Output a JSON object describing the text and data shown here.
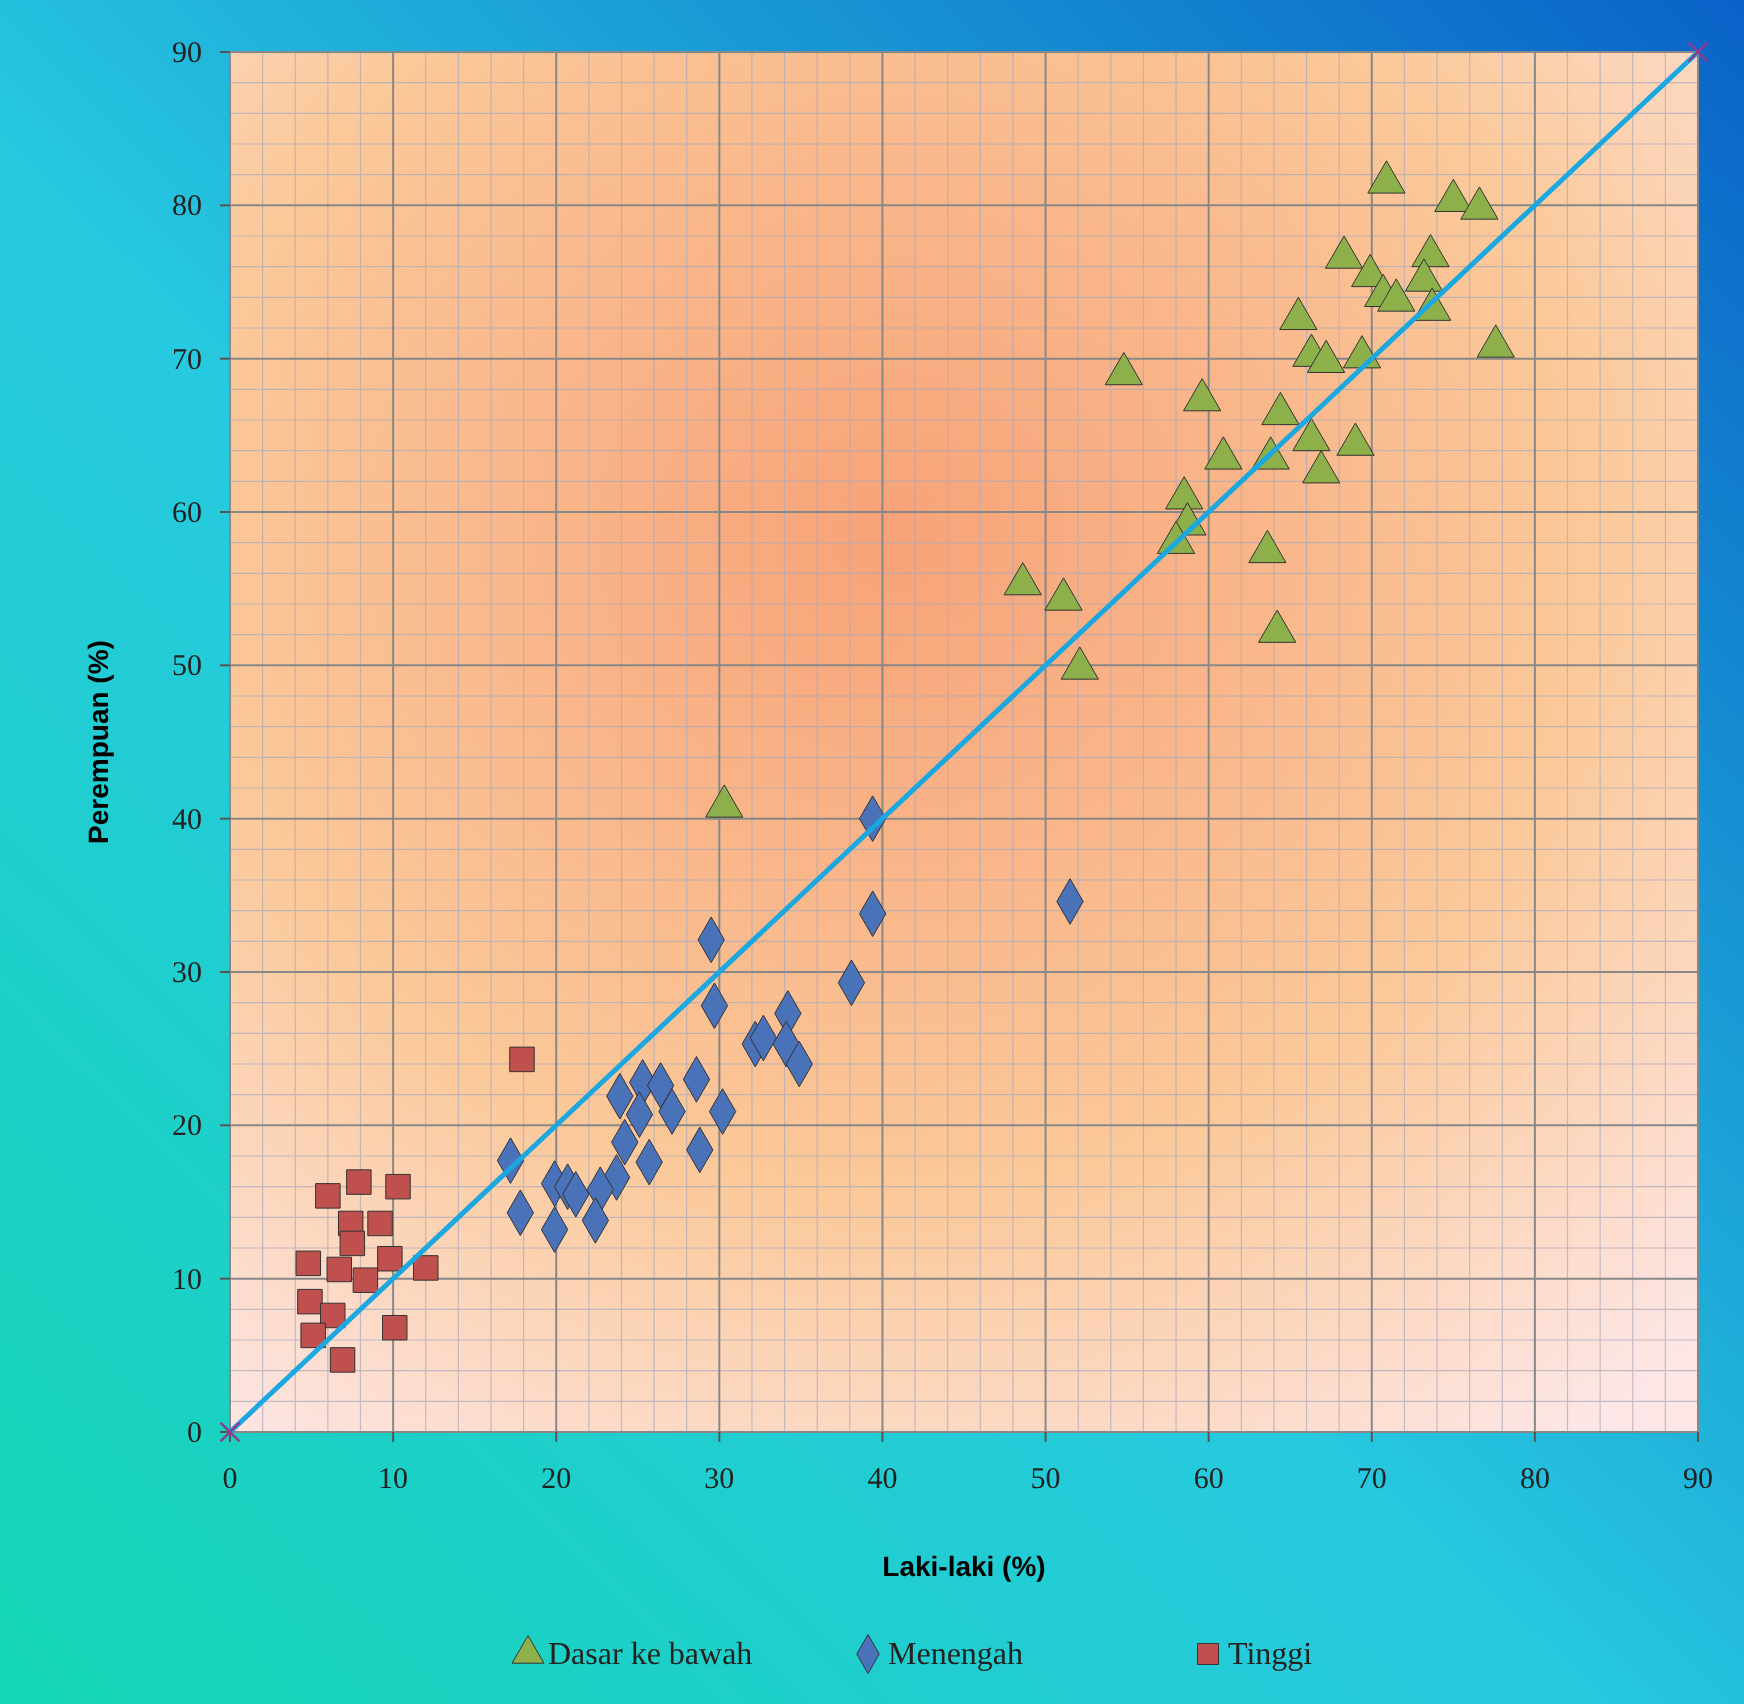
{
  "chart_data": {
    "type": "scatter",
    "xlabel": "Laki-laki (%)",
    "ylabel": "Perempuan (%)",
    "xlim": [
      0,
      90
    ],
    "ylim": [
      0,
      90
    ],
    "xticks": [
      0,
      10,
      20,
      30,
      40,
      50,
      60,
      70,
      80,
      90
    ],
    "yticks": [
      0,
      10,
      20,
      30,
      40,
      50,
      60,
      70,
      80,
      90
    ],
    "grid": true,
    "legend": "bottom",
    "series": [
      {
        "name": "Dasar ke bawah",
        "color": "#8db04a",
        "marker": "triangle",
        "x": [
          70.9,
          75.0,
          76.6,
          68.3,
          73.6,
          69.9,
          73.2,
          70.7,
          71.5,
          73.7,
          65.5,
          66.3,
          67.2,
          69.4,
          77.6,
          54.8,
          59.6,
          64.4,
          60.9,
          63.8,
          66.3,
          66.9,
          69.0,
          58.5,
          58.7,
          58.0,
          63.6,
          64.2,
          48.6,
          51.1,
          52.1,
          30.3
        ],
        "values": [
          81.5,
          80.3,
          79.8,
          76.6,
          76.7,
          75.4,
          75.1,
          74.1,
          73.8,
          73.2,
          72.6,
          70.2,
          69.8,
          70.1,
          70.8,
          69.0,
          67.3,
          66.4,
          63.5,
          63.5,
          64.7,
          62.6,
          64.4,
          60.9,
          59.2,
          58.0,
          57.4,
          52.2,
          55.3,
          54.3,
          49.8,
          40.8
        ]
      },
      {
        "name": "Menengah",
        "color": "#4a72b8",
        "marker": "diamond",
        "x": [
          39.4,
          39.4,
          51.5,
          29.5,
          38.1,
          29.7,
          34.2,
          32.2,
          32.7,
          34.1,
          34.9,
          25.3,
          26.4,
          28.6,
          23.9,
          25.1,
          27.1,
          30.2,
          24.2,
          25.7,
          28.8,
          17.2,
          23.7,
          22.7,
          19.9,
          20.7,
          21.2,
          17.8,
          22.4,
          19.9
        ],
        "values": [
          40.0,
          33.8,
          34.6,
          32.1,
          29.3,
          27.8,
          27.3,
          25.3,
          25.7,
          25.3,
          24.0,
          22.8,
          22.6,
          23.0,
          21.9,
          20.7,
          20.9,
          20.9,
          18.9,
          17.6,
          18.4,
          17.7,
          16.6,
          15.8,
          16.2,
          16.0,
          15.5,
          14.3,
          13.8,
          13.2
        ]
      },
      {
        "name": "Tinggi",
        "color": "#c0504d",
        "marker": "square",
        "x": [
          17.9,
          6.0,
          7.9,
          10.3,
          7.4,
          9.2,
          7.5,
          4.8,
          6.7,
          9.8,
          12.0,
          8.3,
          4.9,
          6.3,
          5.1,
          10.1,
          6.9
        ],
        "values": [
          24.3,
          15.4,
          16.3,
          16.0,
          13.6,
          13.6,
          12.3,
          11.0,
          10.6,
          11.3,
          10.7,
          9.9,
          8.5,
          7.6,
          6.3,
          6.8,
          4.7
        ]
      },
      {
        "type": "line",
        "color": "#1ba8e0",
        "marker": "cross",
        "x": [
          0,
          90
        ],
        "values": [
          0,
          90
        ]
      }
    ]
  }
}
